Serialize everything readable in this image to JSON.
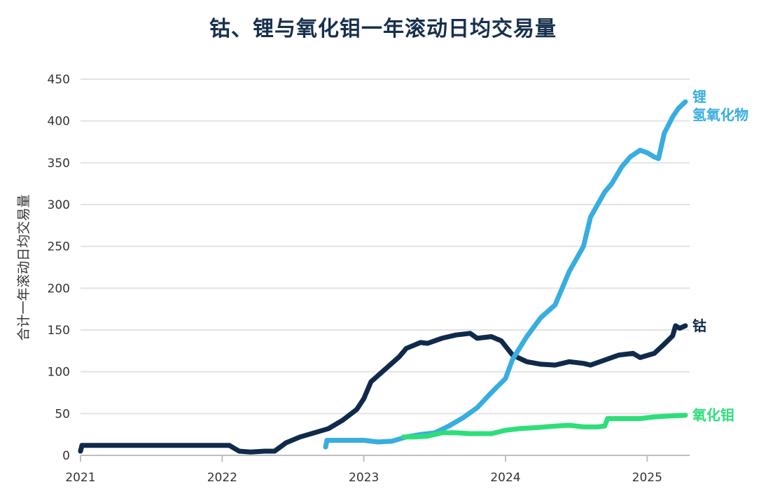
{
  "chart_data": {
    "type": "line",
    "title": "钴、锂与氧化钼一年滚动日均交易量",
    "xlabel": "",
    "ylabel": "合计一年滚动日均交易量",
    "ylim": [
      0,
      450
    ],
    "xlim": [
      2021.0,
      2025.3
    ],
    "y_ticks": [
      0,
      50,
      100,
      150,
      200,
      250,
      300,
      350,
      400,
      450
    ],
    "x_ticks": [
      2021,
      2022,
      2023,
      2024,
      2025
    ],
    "x_tick_labels": [
      "2021",
      "2022",
      "2023",
      "2024",
      "2025"
    ],
    "grid": "horizontal",
    "legend": "inline labels at right end of lines",
    "series": [
      {
        "name": "钴",
        "label_lines": [
          "钴"
        ],
        "color": "#0f2a4a",
        "points": [
          [
            2021.0,
            5
          ],
          [
            2021.01,
            12
          ],
          [
            2021.5,
            12
          ],
          [
            2022.0,
            12
          ],
          [
            2022.05,
            12
          ],
          [
            2022.12,
            5
          ],
          [
            2022.2,
            4
          ],
          [
            2022.3,
            5
          ],
          [
            2022.37,
            5
          ],
          [
            2022.45,
            15
          ],
          [
            2022.55,
            22
          ],
          [
            2022.65,
            27
          ],
          [
            2022.75,
            32
          ],
          [
            2022.85,
            42
          ],
          [
            2022.95,
            55
          ],
          [
            2023.0,
            68
          ],
          [
            2023.05,
            88
          ],
          [
            2023.15,
            103
          ],
          [
            2023.25,
            118
          ],
          [
            2023.3,
            128
          ],
          [
            2023.4,
            135
          ],
          [
            2023.45,
            134
          ],
          [
            2023.55,
            140
          ],
          [
            2023.65,
            144
          ],
          [
            2023.75,
            146
          ],
          [
            2023.8,
            140
          ],
          [
            2023.9,
            142
          ],
          [
            2023.97,
            137
          ],
          [
            2024.05,
            120
          ],
          [
            2024.15,
            112
          ],
          [
            2024.25,
            109
          ],
          [
            2024.35,
            108
          ],
          [
            2024.45,
            112
          ],
          [
            2024.55,
            110
          ],
          [
            2024.6,
            108
          ],
          [
            2024.7,
            114
          ],
          [
            2024.8,
            120
          ],
          [
            2024.9,
            122
          ],
          [
            2024.95,
            117
          ],
          [
            2025.05,
            122
          ],
          [
            2025.12,
            133
          ],
          [
            2025.18,
            143
          ],
          [
            2025.2,
            155
          ],
          [
            2025.23,
            152
          ],
          [
            2025.27,
            155
          ]
        ]
      },
      {
        "name": "锂氢氧化物",
        "label_lines": [
          "锂",
          "氢氧化物"
        ],
        "color": "#38ade0",
        "points": [
          [
            2022.73,
            10
          ],
          [
            2022.74,
            18
          ],
          [
            2022.9,
            18
          ],
          [
            2023.0,
            18
          ],
          [
            2023.1,
            16
          ],
          [
            2023.2,
            17
          ],
          [
            2023.3,
            22
          ],
          [
            2023.4,
            25
          ],
          [
            2023.5,
            27
          ],
          [
            2023.6,
            35
          ],
          [
            2023.7,
            45
          ],
          [
            2023.8,
            57
          ],
          [
            2023.9,
            75
          ],
          [
            2024.0,
            92
          ],
          [
            2024.05,
            115
          ],
          [
            2024.15,
            142
          ],
          [
            2024.25,
            165
          ],
          [
            2024.35,
            180
          ],
          [
            2024.45,
            220
          ],
          [
            2024.55,
            250
          ],
          [
            2024.6,
            285
          ],
          [
            2024.7,
            315
          ],
          [
            2024.75,
            325
          ],
          [
            2024.82,
            345
          ],
          [
            2024.88,
            357
          ],
          [
            2024.95,
            365
          ],
          [
            2025.0,
            362
          ],
          [
            2025.05,
            357
          ],
          [
            2025.08,
            355
          ],
          [
            2025.12,
            385
          ],
          [
            2025.18,
            405
          ],
          [
            2025.22,
            415
          ],
          [
            2025.27,
            423
          ]
        ]
      },
      {
        "name": "氧化钼",
        "label_lines": [
          "氧化钼"
        ],
        "color": "#2ede7a",
        "points": [
          [
            2023.28,
            22
          ],
          [
            2023.35,
            22
          ],
          [
            2023.45,
            23
          ],
          [
            2023.55,
            27
          ],
          [
            2023.65,
            27
          ],
          [
            2023.75,
            26
          ],
          [
            2023.9,
            26
          ],
          [
            2024.0,
            30
          ],
          [
            2024.1,
            32
          ],
          [
            2024.2,
            33
          ],
          [
            2024.35,
            35
          ],
          [
            2024.45,
            36
          ],
          [
            2024.55,
            34
          ],
          [
            2024.65,
            34
          ],
          [
            2024.7,
            35
          ],
          [
            2024.72,
            44
          ],
          [
            2024.8,
            44
          ],
          [
            2024.95,
            44
          ],
          [
            2025.05,
            46
          ],
          [
            2025.15,
            47
          ],
          [
            2025.27,
            48
          ]
        ]
      }
    ]
  }
}
